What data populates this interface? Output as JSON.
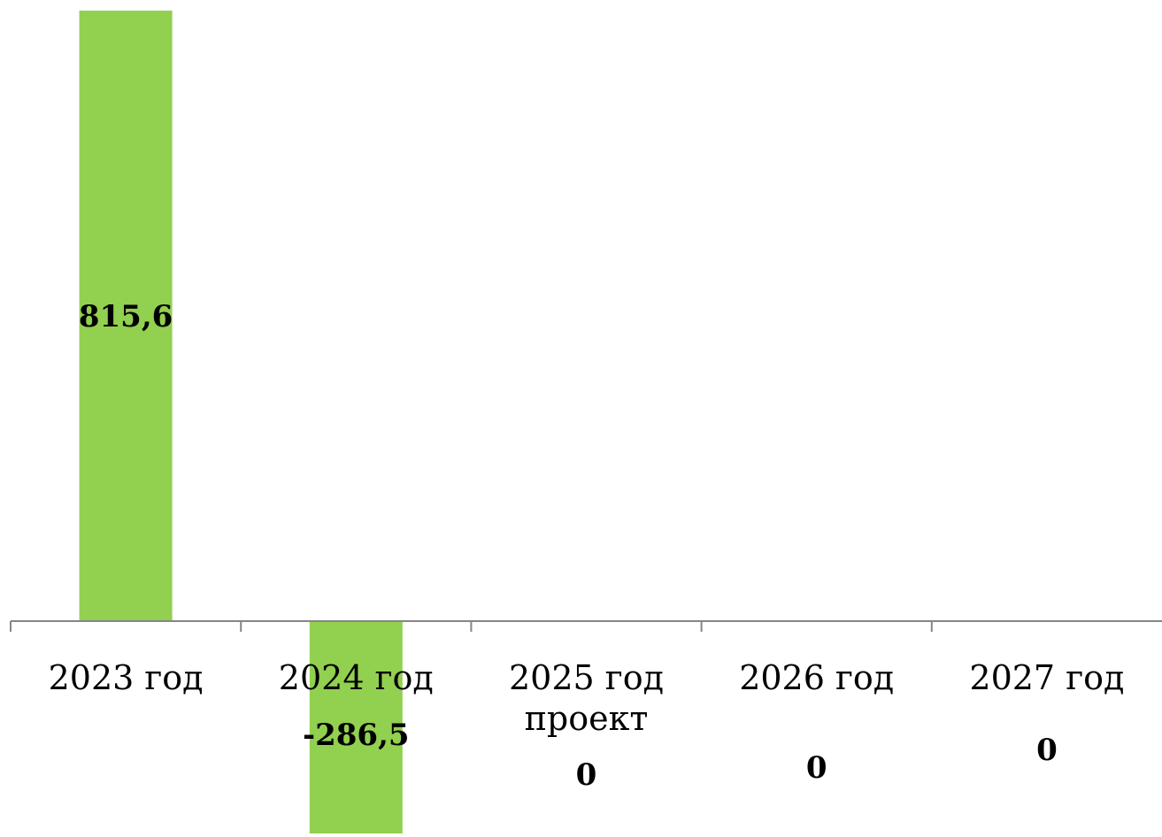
{
  "chart_data": {
    "type": "bar",
    "categories": [
      "2023 год",
      "2024 год",
      "2025 год\nпроект",
      "2026 год",
      "2027 год"
    ],
    "values": [
      815.6,
      -286.5,
      0,
      0,
      0
    ],
    "data_labels": [
      "815,6",
      "-286,5",
      "0",
      "0",
      "0"
    ],
    "title": "",
    "xlabel": "",
    "ylabel": "",
    "ylim": [
      -286.5,
      815.6
    ],
    "grid": false,
    "legend": "none",
    "bar_color": "#92d050",
    "axis_color": "#868686"
  }
}
